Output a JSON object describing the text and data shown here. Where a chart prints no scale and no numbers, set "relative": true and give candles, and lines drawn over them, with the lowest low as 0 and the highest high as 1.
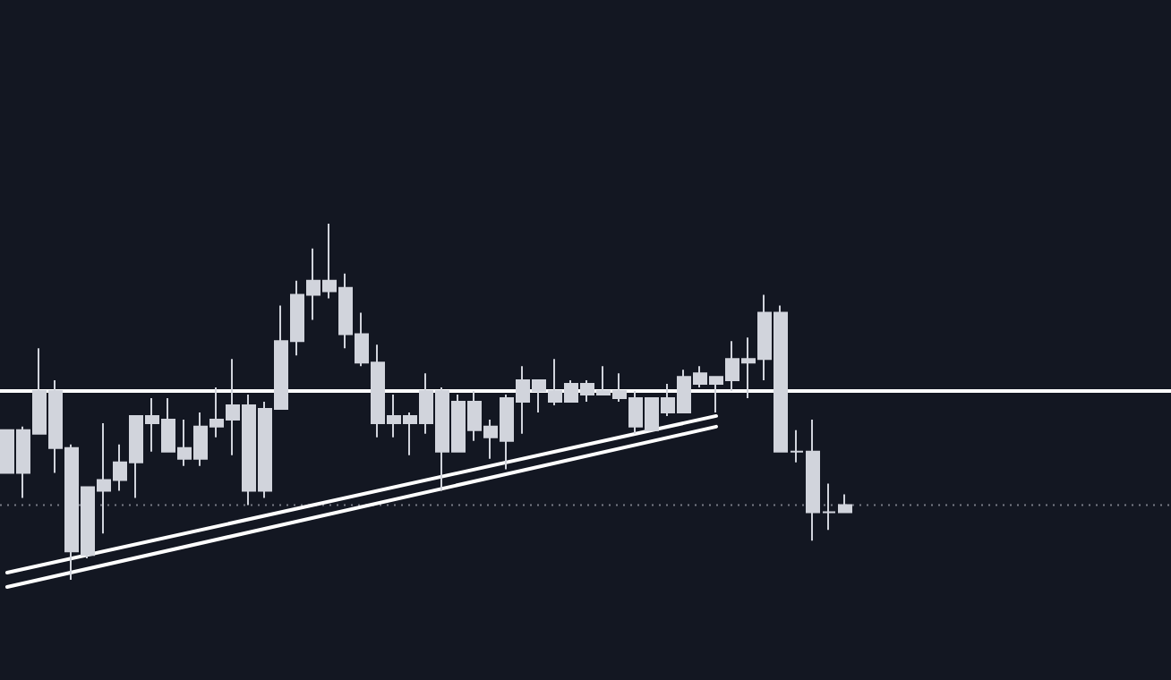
{
  "chart_data": {
    "type": "candlestick",
    "relative": true,
    "color": "#d1d4dc",
    "categories": [
      null,
      null,
      null,
      null,
      null,
      null,
      null,
      null,
      null,
      null,
      null,
      null,
      null,
      null,
      null,
      null,
      null,
      null,
      null,
      null,
      null,
      null,
      null,
      null,
      null,
      null,
      null,
      null,
      null,
      null,
      null,
      null,
      null,
      null,
      null,
      null,
      null,
      null,
      null,
      null,
      null,
      null,
      null,
      null,
      null,
      null,
      null,
      null,
      null,
      null,
      null,
      null,
      null
    ],
    "ohlc": [
      [
        0.3,
        0.42,
        0.3,
        0.42
      ],
      [
        0.3,
        0.43,
        0.23,
        0.42
      ],
      [
        0.41,
        0.65,
        0.41,
        0.53
      ],
      [
        0.37,
        0.56,
        0.3,
        0.53
      ],
      [
        0.08,
        0.38,
        0,
        0.37
      ],
      [
        0.07,
        0.26,
        0.06,
        0.26
      ],
      [
        0.25,
        0.44,
        0.13,
        0.28
      ],
      [
        0.28,
        0.38,
        0.25,
        0.33
      ],
      [
        0.33,
        0.46,
        0.23,
        0.46
      ],
      [
        0.44,
        0.51,
        0.36,
        0.46
      ],
      [
        0.36,
        0.51,
        0.36,
        0.45
      ],
      [
        0.34,
        0.45,
        0.32,
        0.37
      ],
      [
        0.34,
        0.47,
        0.32,
        0.43
      ],
      [
        0.43,
        0.54,
        0.4,
        0.45
      ],
      [
        0.45,
        0.62,
        0.35,
        0.49
      ],
      [
        0.25,
        0.52,
        0.21,
        0.49
      ],
      [
        0.25,
        0.5,
        0.23,
        0.48
      ],
      [
        0.48,
        0.77,
        0.48,
        0.67
      ],
      [
        0.67,
        0.84,
        0.63,
        0.8
      ],
      [
        0.8,
        0.93,
        0.73,
        0.84
      ],
      [
        0.81,
        1,
        0.79,
        0.84
      ],
      [
        0.69,
        0.86,
        0.65,
        0.82
      ],
      [
        0.61,
        0.75,
        0.6,
        0.69
      ],
      [
        0.44,
        0.66,
        0.4,
        0.61
      ],
      [
        0.44,
        0.52,
        0.4,
        0.46
      ],
      [
        0.44,
        0.47,
        0.35,
        0.46
      ],
      [
        0.44,
        0.58,
        0.41,
        0.53
      ],
      [
        0.36,
        0.54,
        0.25,
        0.53
      ],
      [
        0.36,
        0.52,
        0.36,
        0.5
      ],
      [
        0.42,
        0.53,
        0.39,
        0.5
      ],
      [
        0.4,
        0.45,
        0.34,
        0.43
      ],
      [
        0.39,
        0.52,
        0.31,
        0.51
      ],
      [
        0.5,
        0.6,
        0.41,
        0.56
      ],
      [
        0.53,
        0.56,
        0.47,
        0.56
      ],
      [
        0.5,
        0.62,
        0.49,
        0.53
      ],
      [
        0.5,
        0.56,
        0.5,
        0.55
      ],
      [
        0.52,
        0.56,
        0.5,
        0.55
      ],
      [
        0.52,
        0.6,
        0.52,
        0.53
      ],
      [
        0.51,
        0.58,
        0.5,
        0.53
      ],
      [
        0.43,
        0.53,
        0.41,
        0.51
      ],
      [
        0.42,
        0.51,
        0.42,
        0.51
      ],
      [
        0.47,
        0.55,
        0.46,
        0.51
      ],
      [
        0.47,
        0.59,
        0.47,
        0.57
      ],
      [
        0.55,
        0.6,
        0.54,
        0.58
      ],
      [
        0.55,
        0.57,
        0.47,
        0.57
      ],
      [
        0.56,
        0.67,
        0.53,
        0.62
      ],
      [
        0.61,
        0.68,
        0.51,
        0.62
      ],
      [
        0.62,
        0.8,
        0.56,
        0.75
      ],
      [
        0.36,
        0.77,
        0.36,
        0.75
      ],
      [
        0.36,
        0.42,
        0.33,
        0.36
      ],
      [
        0.19,
        0.45,
        0.11,
        0.36
      ],
      [
        0.19,
        0.27,
        0.14,
        0.19
      ],
      [
        0.19,
        0.24,
        0.19,
        0.21
      ]
    ],
    "series": [
      {
        "type": "line",
        "color": "#ffffff",
        "values": [
          0.02,
          null,
          null,
          null,
          null,
          null,
          null,
          null,
          null,
          null,
          null,
          null,
          null,
          null,
          null,
          null,
          null,
          null,
          null,
          null,
          null,
          null,
          null,
          null,
          null,
          null,
          null,
          null,
          null,
          null,
          null,
          null,
          null,
          null,
          null,
          null,
          null,
          null,
          null,
          null,
          null,
          null,
          null,
          null,
          0.46,
          null,
          null,
          null,
          null,
          null,
          null,
          null,
          null
        ]
      },
      {
        "type": "line",
        "color": "#ffffff",
        "values": [
          -0.02,
          null,
          null,
          null,
          null,
          null,
          null,
          null,
          null,
          null,
          null,
          null,
          null,
          null,
          null,
          null,
          null,
          null,
          null,
          null,
          null,
          null,
          null,
          null,
          null,
          null,
          null,
          null,
          null,
          null,
          null,
          null,
          null,
          null,
          null,
          null,
          null,
          null,
          null,
          null,
          null,
          null,
          null,
          null,
          0.43,
          null,
          null,
          null,
          null,
          null,
          null,
          null,
          null
        ]
      }
    ],
    "line_style": "solid",
    "ref_lines": [
      {
        "axis": "y",
        "value": 0.53,
        "color": "#ffffff",
        "line_style": "solid"
      },
      {
        "axis": "y",
        "value": 0.21,
        "color": "#787b86",
        "line_style": "dotted"
      }
    ]
  }
}
